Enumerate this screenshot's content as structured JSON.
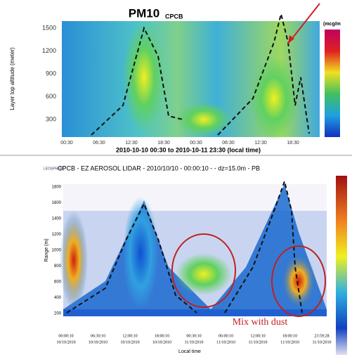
{
  "top_panel": {
    "title": "PM10",
    "subtitle": "CPCB",
    "y_label": "Layer top altitude (meter)",
    "y_ticks": [
      "1500",
      "1200",
      "900",
      "600",
      "300"
    ],
    "x_ticks": [
      "00:30",
      "06:30",
      "12:30",
      "18:30",
      "00:30",
      "06:30",
      "12:30",
      "18:30"
    ],
    "x_label": "2010-10-10 00:30 to 2010-10-11 23:30 (local time)",
    "colorbar_label": "(mcg/m"
  },
  "bottom_panel": {
    "header": "CPCB - EZ AEROSOL LIDAR - 2010/10/10 - 00:00:10 - - dz=15.0m - PB",
    "logo": "LEOSPHERE",
    "y_label": "Range (m)",
    "y_ticks": [
      "1800",
      "1600",
      "1400",
      "1200",
      "1000",
      "800",
      "600",
      "400",
      "200"
    ],
    "x_ticks": [
      [
        "00:00:10",
        "10/10/2010"
      ],
      [
        "06:30:10",
        "10/10/2010"
      ],
      [
        "12:00:10",
        "10/10/2010"
      ],
      [
        "18:00:10",
        "10/10/2010"
      ],
      [
        "00:30:10",
        "11/10/2010"
      ],
      [
        "06:00:10",
        "11/10/2010"
      ],
      [
        "12:00:10",
        "11/10/2010"
      ],
      [
        "18:00:10",
        "11/10/2010"
      ],
      [
        "23:59:28",
        "11/10/2010"
      ]
    ],
    "x_label": "Local time",
    "annotation": "Mix with dust"
  }
}
